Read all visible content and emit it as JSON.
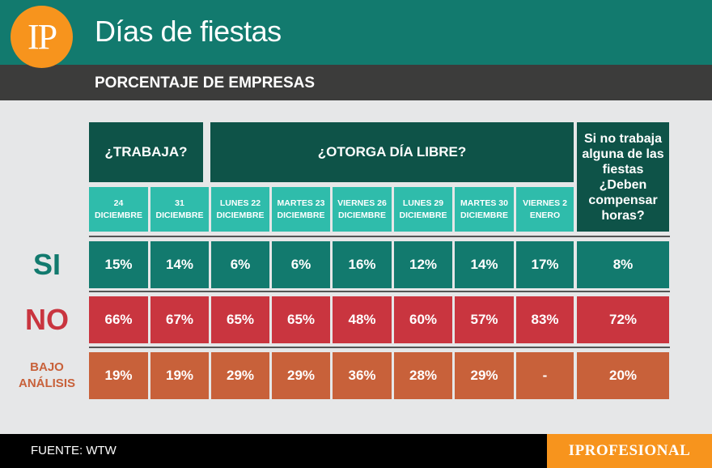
{
  "header": {
    "logo": "IP",
    "title": "Días de fiestas",
    "subtitle": "PORCENTAJE DE EMPRESAS"
  },
  "chart_data": {
    "type": "table",
    "title": "Días de fiestas",
    "subtitle": "PORCENTAJE DE EMPRESAS",
    "groups": [
      "¿TRABAJA?",
      "¿OTORGA DÍA LIBRE?"
    ],
    "compensa_header": "Si no trabaja alguna de las fiestas ¿Deben compensar horas?",
    "columns": [
      {
        "top": "24",
        "bottom": "DICIEMBRE"
      },
      {
        "top": "31",
        "bottom": "DICIEMBRE"
      },
      {
        "top": "LUNES 22",
        "bottom": "DICIEMBRE"
      },
      {
        "top": "MARTES 23",
        "bottom": "DICIEMBRE"
      },
      {
        "top": "VIERNES 26",
        "bottom": "DICIEMBRE"
      },
      {
        "top": "LUNES 29",
        "bottom": "DICIEMBRE"
      },
      {
        "top": "MARTES 30",
        "bottom": "DICIEMBRE"
      },
      {
        "top": "VIERNES 2",
        "bottom": "ENERO"
      }
    ],
    "rows": [
      {
        "label": "SI",
        "label_color": "#127a6e",
        "color": "#127a6e",
        "values": [
          "15%",
          "14%",
          "6%",
          "6%",
          "16%",
          "12%",
          "14%",
          "17%",
          "8%"
        ]
      },
      {
        "label": "NO",
        "label_color": "#c9353f",
        "color": "#c9353f",
        "values": [
          "66%",
          "67%",
          "65%",
          "65%",
          "48%",
          "60%",
          "57%",
          "83%",
          "72%"
        ]
      },
      {
        "label": "BAJO ANÁLISIS",
        "label_color": "#c8613a",
        "color": "#c8613a",
        "values": [
          "19%",
          "19%",
          "29%",
          "29%",
          "36%",
          "28%",
          "29%",
          "-",
          "20%"
        ]
      }
    ]
  },
  "footer": {
    "source": "FUENTE: WTW",
    "brand": "IPROFESIONAL"
  }
}
